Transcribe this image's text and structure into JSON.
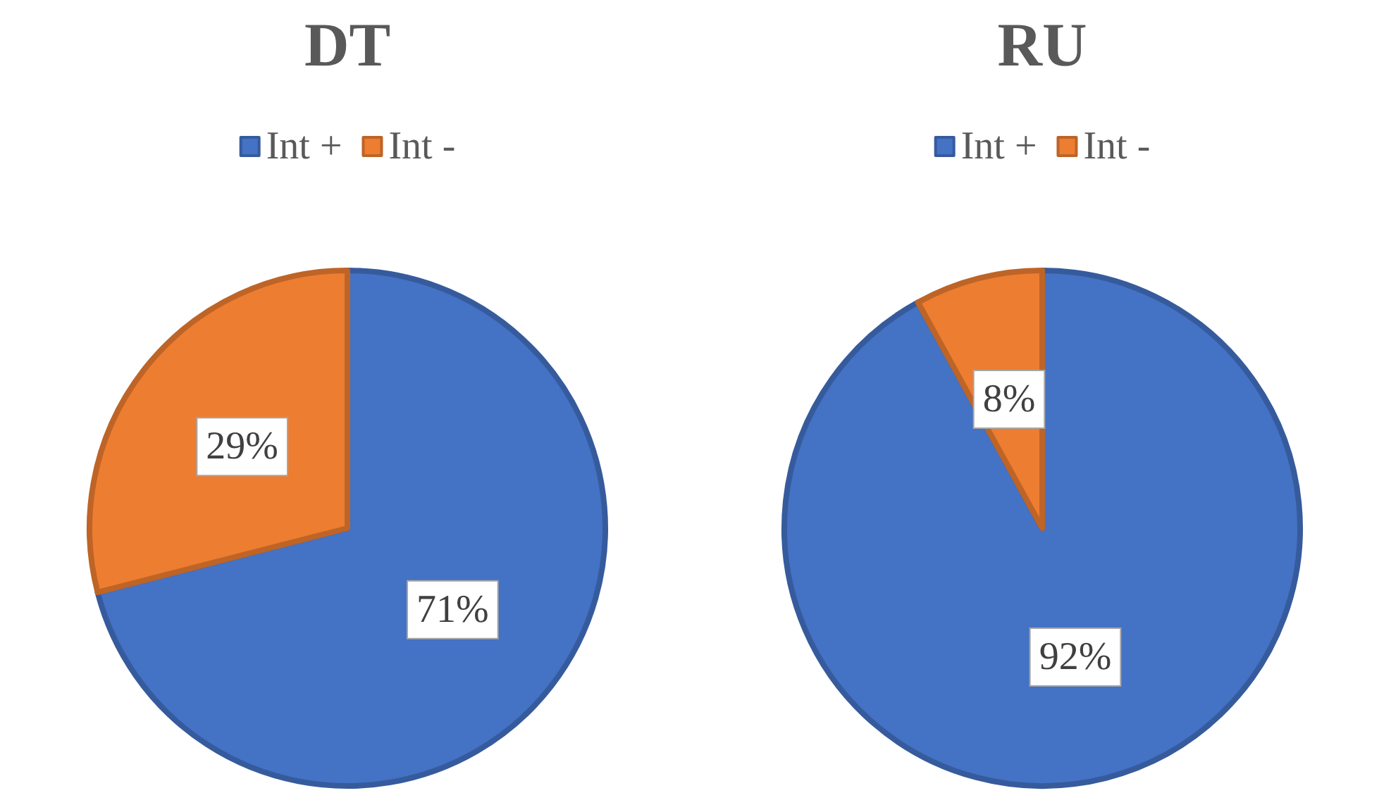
{
  "chart_data": [
    {
      "type": "pie",
      "title": "DT",
      "categories": [
        "Int +",
        "Int -"
      ],
      "values": [
        71,
        29
      ],
      "colors": [
        "#4472c4",
        "#ed7d31"
      ],
      "value_labels": [
        "71%",
        "29%"
      ],
      "legend": "top"
    },
    {
      "type": "pie",
      "title": "RU",
      "categories": [
        "Int +",
        "Int -"
      ],
      "values": [
        92,
        8
      ],
      "colors": [
        "#4472c4",
        "#ed7d31"
      ],
      "value_labels": [
        "92%",
        "8%"
      ],
      "legend": "top"
    }
  ]
}
